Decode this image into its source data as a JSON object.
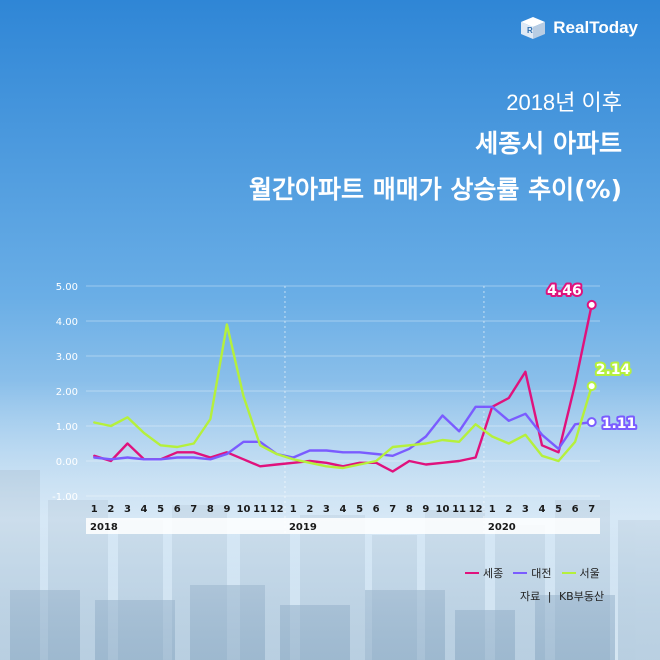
{
  "brand": {
    "name": "RealToday"
  },
  "titles": {
    "line1": "2018년 이후",
    "line2": "세종시 아파트",
    "line3": "월간아파트 매매가 상승률 추이(%)"
  },
  "source": {
    "label": "자료",
    "separator": "|",
    "value": "KB부동산"
  },
  "colors": {
    "sejong": "#e0127d",
    "daejeon": "#7a5cff",
    "seoul": "#b5f03c"
  },
  "chart_data": {
    "type": "line",
    "ylim": [
      -1.0,
      5.0
    ],
    "y_ticks": [
      "5.00",
      "4.00",
      "3.00",
      "2.00",
      "1.00",
      "0.00",
      "-1.00"
    ],
    "y_tick_values": [
      5,
      4,
      3,
      2,
      1,
      0,
      -1
    ],
    "categories": [
      "1",
      "2",
      "3",
      "4",
      "5",
      "6",
      "7",
      "8",
      "9",
      "10",
      "11",
      "12",
      "1",
      "2",
      "3",
      "4",
      "5",
      "6",
      "7",
      "8",
      "9",
      "10",
      "11",
      "12",
      "1",
      "2",
      "3",
      "4",
      "5",
      "6",
      "7"
    ],
    "years": [
      {
        "label": "2018",
        "start_index": 0
      },
      {
        "label": "2019",
        "start_index": 12
      },
      {
        "label": "2020",
        "start_index": 24
      }
    ],
    "grid": true,
    "legend_position": "bottom-right",
    "series": [
      {
        "name": "세종",
        "color": "#e0127d",
        "values": [
          0.15,
          0.0,
          0.5,
          0.05,
          0.05,
          0.25,
          0.25,
          0.1,
          0.25,
          0.05,
          -0.15,
          -0.1,
          -0.05,
          0.0,
          -0.05,
          -0.15,
          -0.05,
          -0.05,
          -0.3,
          0.0,
          -0.1,
          -0.05,
          0.0,
          0.1,
          1.55,
          1.8,
          2.55,
          0.45,
          0.25,
          2.2,
          4.46
        ]
      },
      {
        "name": "대전",
        "color": "#7a5cff",
        "values": [
          0.1,
          0.05,
          0.1,
          0.05,
          0.05,
          0.1,
          0.1,
          0.05,
          0.2,
          0.55,
          0.55,
          0.2,
          0.1,
          0.3,
          0.3,
          0.25,
          0.25,
          0.2,
          0.15,
          0.35,
          0.7,
          1.3,
          0.85,
          1.55,
          1.55,
          1.15,
          1.35,
          0.75,
          0.35,
          1.05,
          1.11
        ]
      },
      {
        "name": "서울",
        "color": "#b5f03c",
        "values": [
          1.1,
          1.0,
          1.25,
          0.8,
          0.45,
          0.4,
          0.5,
          1.2,
          3.9,
          1.85,
          0.45,
          0.2,
          0.05,
          -0.05,
          -0.15,
          -0.2,
          -0.1,
          0.0,
          0.4,
          0.45,
          0.5,
          0.6,
          0.55,
          1.05,
          0.7,
          0.5,
          0.75,
          0.15,
          0.0,
          0.55,
          2.14
        ]
      }
    ],
    "end_labels": [
      {
        "series": "세종",
        "text": "4.46"
      },
      {
        "series": "서울",
        "text": "2.14"
      },
      {
        "series": "대전",
        "text": "1.11"
      }
    ]
  }
}
